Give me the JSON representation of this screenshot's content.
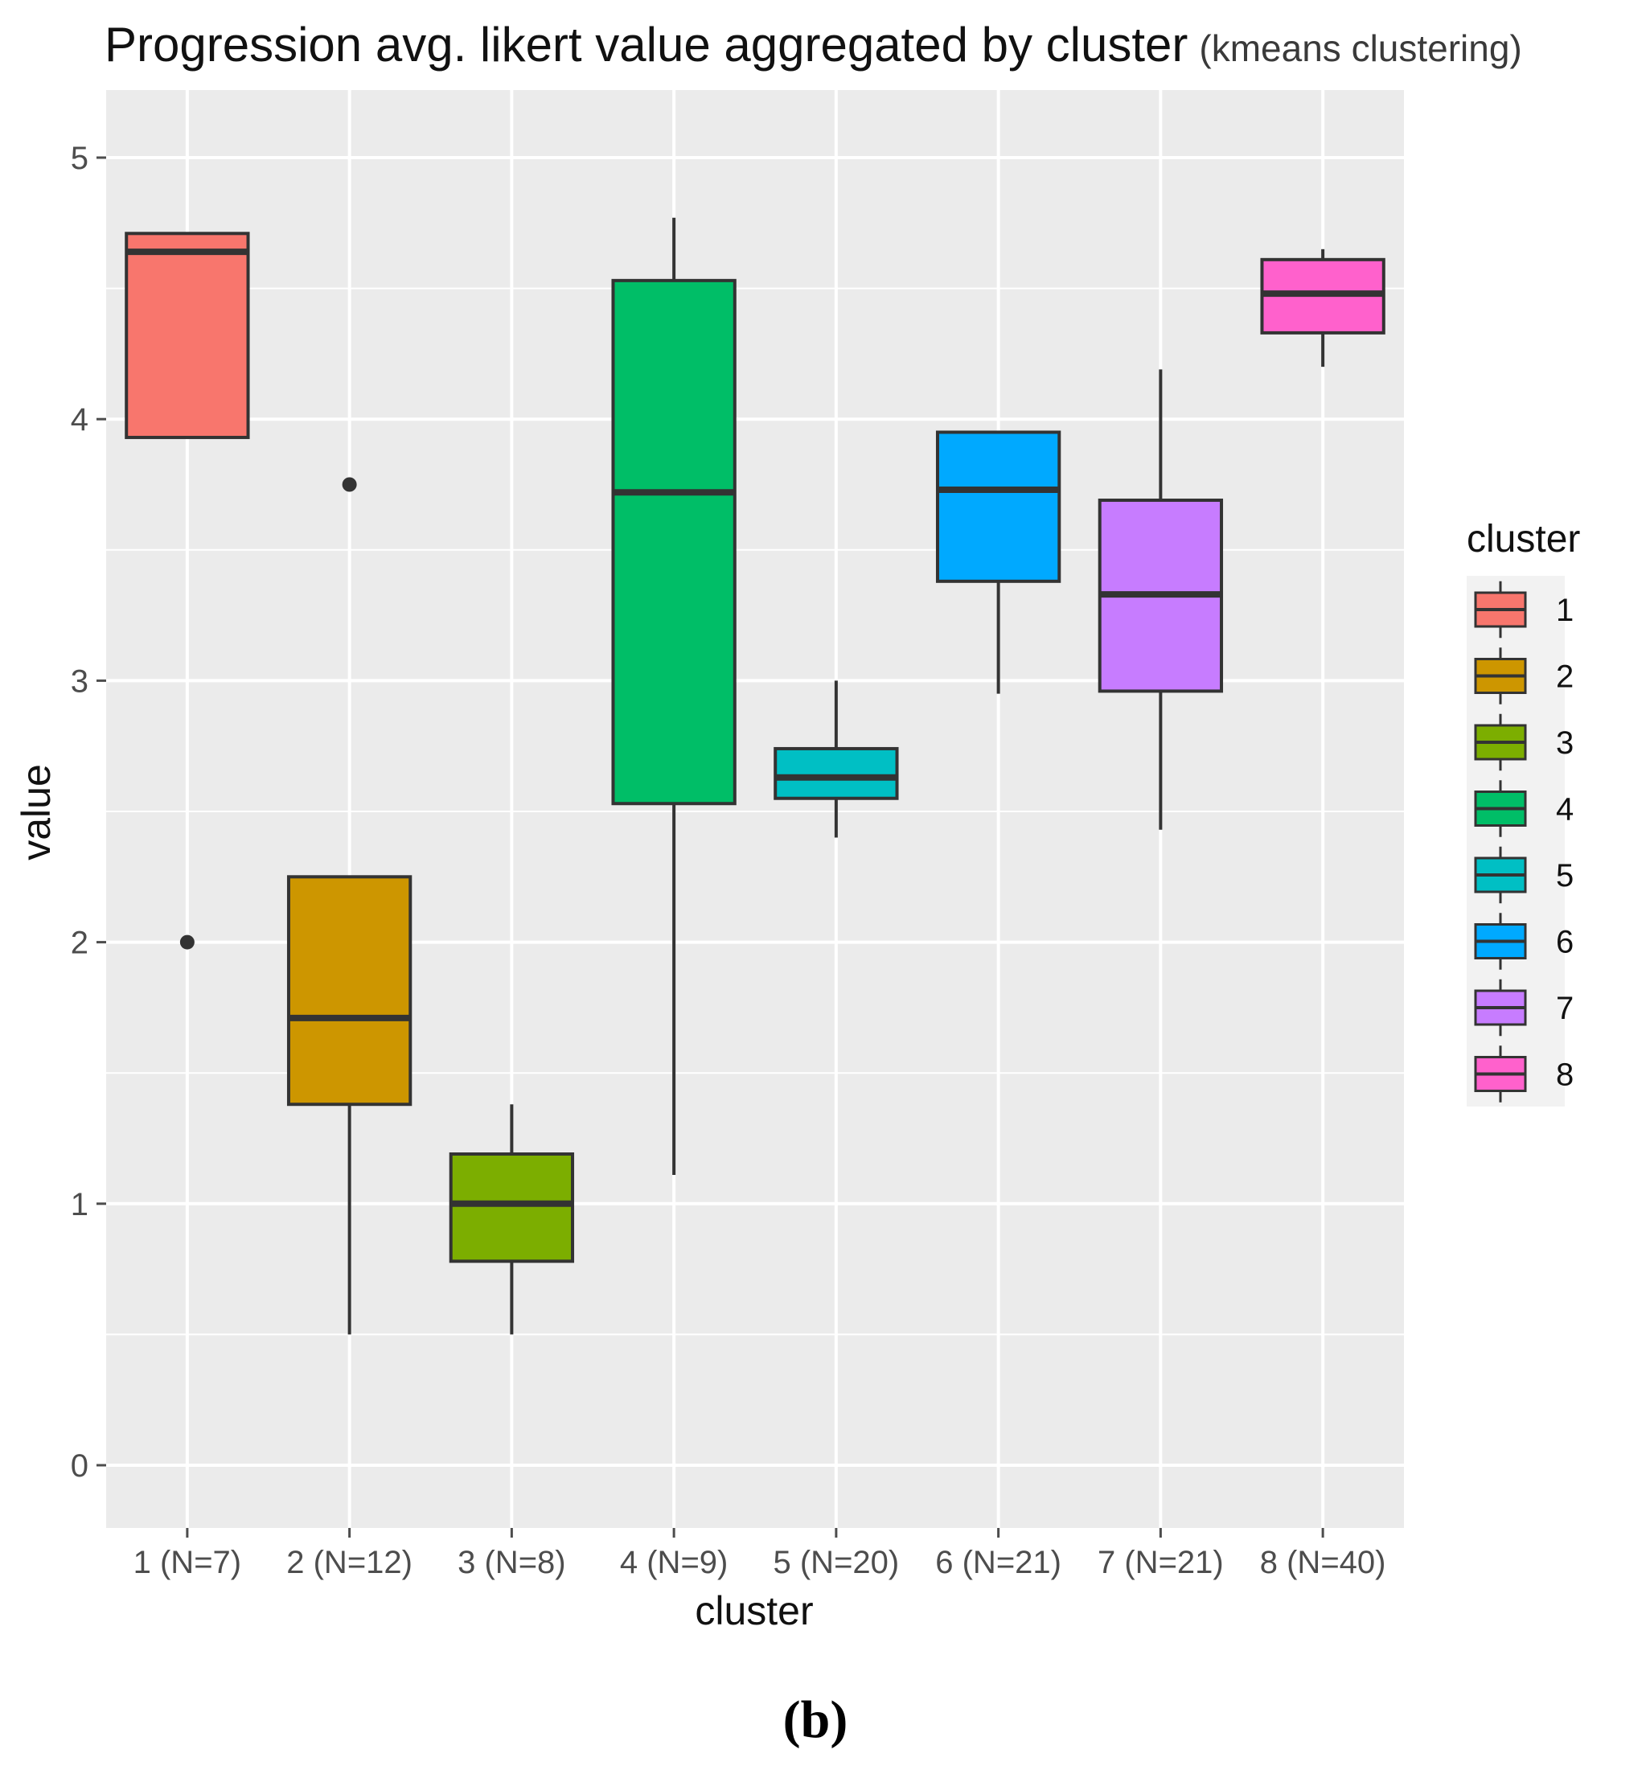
{
  "chart_data": {
    "type": "boxplot",
    "title": "Progression avg. likert value aggregated by cluster",
    "subtitle": "(kmeans clustering)",
    "xlabel": "cluster",
    "ylabel": "value",
    "ylim": [
      -0.25,
      5.25
    ],
    "yticks": [
      0,
      1,
      2,
      3,
      4,
      5
    ],
    "grid": true,
    "legend": {
      "title": "cluster",
      "position": "right"
    },
    "categories": [
      "1 (N=7)",
      "2 (N=12)",
      "3 (N=8)",
      "4 (N=9)",
      "5 (N=20)",
      "6 (N=21)",
      "7 (N=21)",
      "8 (N=40)"
    ],
    "series": [
      {
        "name": "1",
        "color": "#F8766D",
        "whisker_low": 3.93,
        "q1": 3.93,
        "median": 4.64,
        "q3": 4.71,
        "whisker_high": 4.71,
        "outliers": [
          2.0
        ]
      },
      {
        "name": "2",
        "color": "#CD9600",
        "whisker_low": 0.5,
        "q1": 1.38,
        "median": 1.71,
        "q3": 2.25,
        "whisker_high": 2.25,
        "outliers": [
          3.75
        ]
      },
      {
        "name": "3",
        "color": "#7CAE00",
        "whisker_low": 0.5,
        "q1": 0.78,
        "median": 1.0,
        "q3": 1.19,
        "whisker_high": 1.38,
        "outliers": []
      },
      {
        "name": "4",
        "color": "#00BE67",
        "whisker_low": 1.11,
        "q1": 2.53,
        "median": 3.72,
        "q3": 4.53,
        "whisker_high": 4.77,
        "outliers": []
      },
      {
        "name": "5",
        "color": "#00BFC4",
        "whisker_low": 2.4,
        "q1": 2.55,
        "median": 2.63,
        "q3": 2.74,
        "whisker_high": 3.0,
        "outliers": []
      },
      {
        "name": "6",
        "color": "#00A9FF",
        "whisker_low": 2.95,
        "q1": 3.38,
        "median": 3.73,
        "q3": 3.95,
        "whisker_high": 3.95,
        "outliers": []
      },
      {
        "name": "7",
        "color": "#C77CFF",
        "whisker_low": 2.43,
        "q1": 2.96,
        "median": 3.33,
        "q3": 3.69,
        "whisker_high": 4.19,
        "outliers": []
      },
      {
        "name": "8",
        "color": "#FF61CC",
        "whisker_low": 4.2,
        "q1": 4.33,
        "median": 4.48,
        "q3": 4.61,
        "whisker_high": 4.65,
        "outliers": []
      }
    ]
  },
  "caption": "(b)"
}
